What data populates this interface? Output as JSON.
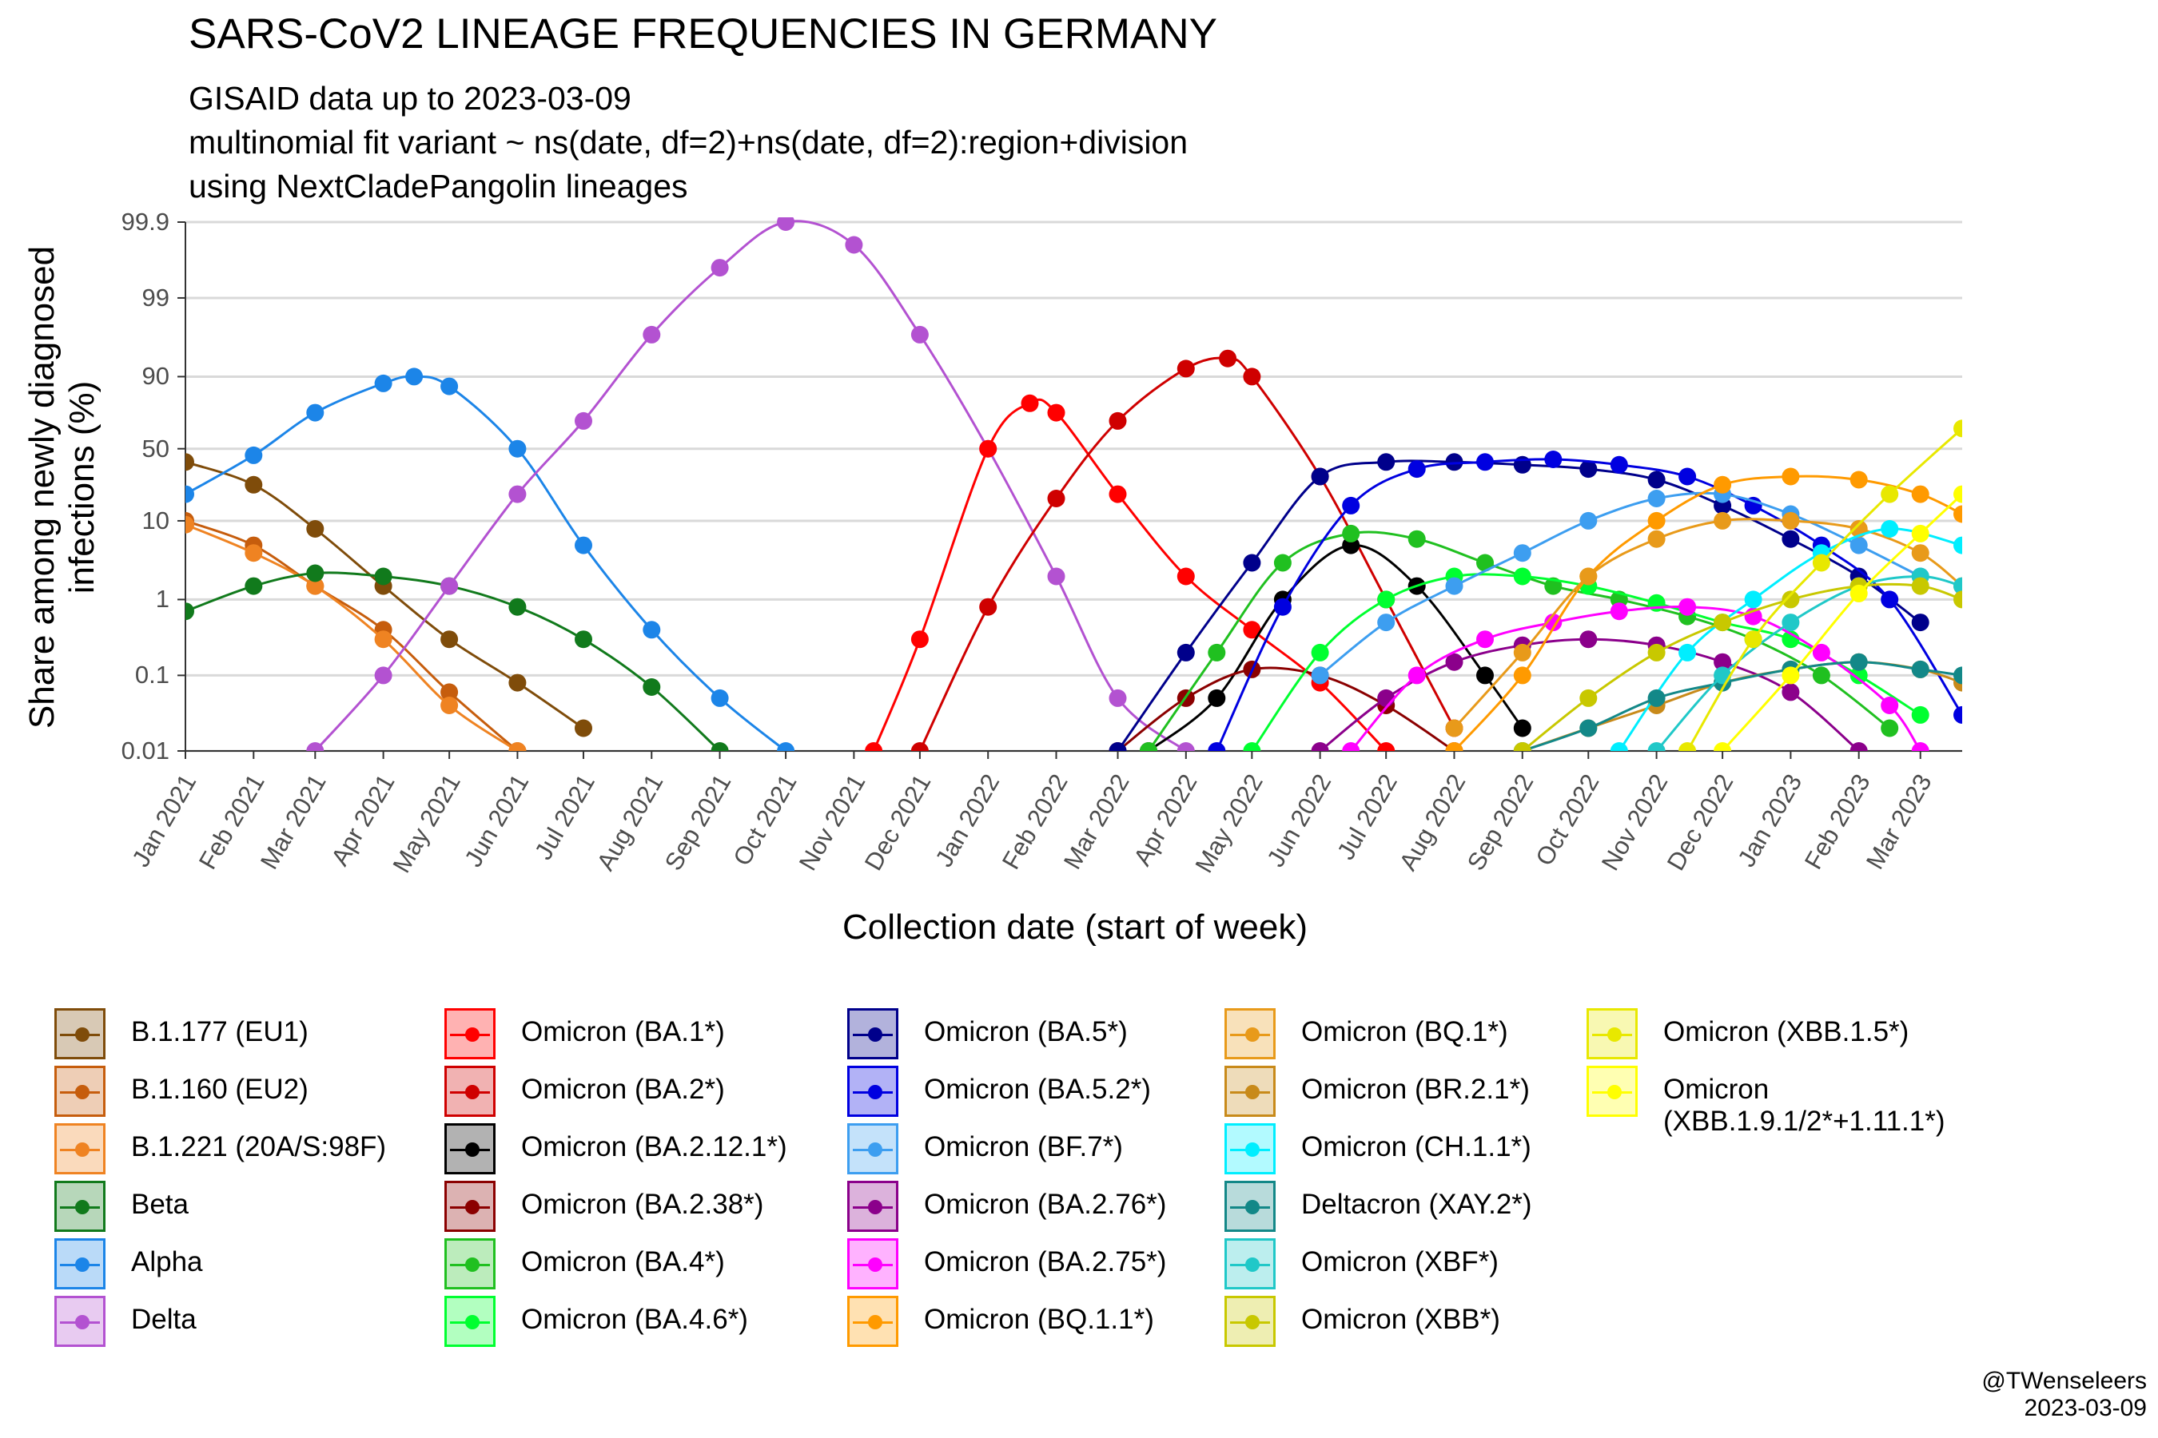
{
  "title": "SARS-CoV2 LINEAGE FREQUENCIES IN GERMANY",
  "subtitle": "GISAID data up to 2023-03-09\nmultinomial fit variant ~ ns(date, df=2)+ns(date, df=2):region+division\nusing NextCladePangolin lineages",
  "caption": "@TWenseleers\n2023-03-09",
  "chart_data": {
    "type": "line",
    "xlabel": "Collection date (start of week)",
    "ylabel": "Share among newly diagnosed\ninfections (%)",
    "y_scale": "logit",
    "y_ticks": [
      {
        "value": 0.01,
        "label": "0.01"
      },
      {
        "value": 0.1,
        "label": "0.1"
      },
      {
        "value": 1,
        "label": "1"
      },
      {
        "value": 10,
        "label": "10"
      },
      {
        "value": 50,
        "label": "50"
      },
      {
        "value": 90,
        "label": "90"
      },
      {
        "value": 99,
        "label": "99"
      },
      {
        "value": 99.9,
        "label": "99.9"
      }
    ],
    "x_ticks": [
      "Jan 2021",
      "Feb 2021",
      "Mar 2021",
      "Apr 2021",
      "May 2021",
      "Jun 2021",
      "Jul 2021",
      "Aug 2021",
      "Sep 2021",
      "Oct 2021",
      "Nov 2021",
      "Dec 2021",
      "Jan 2022",
      "Feb 2022",
      "Mar 2022",
      "Apr 2022",
      "May 2022",
      "Jun 2022",
      "Jul 2022",
      "Aug 2022",
      "Sep 2022",
      "Oct 2022",
      "Nov 2022",
      "Dec 2022",
      "Jan 2023",
      "Feb 2023",
      "Mar 2023"
    ],
    "xlim": [
      "2021-01-01",
      "2023-03-20"
    ],
    "ylim": [
      0.01,
      99.9
    ],
    "grid": true,
    "legend_position": "bottom",
    "series": [
      {
        "name": "B.1.177 (EU1)",
        "color": "#7f4c0a",
        "x": [
          "2021-01-01",
          "2021-02-01",
          "2021-03-01",
          "2021-04-01",
          "2021-05-01",
          "2021-06-01",
          "2021-07-01"
        ],
        "y": [
          40,
          25,
          8,
          1.5,
          0.3,
          0.08,
          0.02
        ]
      },
      {
        "name": "B.1.160 (EU2)",
        "color": "#c65d0d",
        "x": [
          "2021-01-01",
          "2021-02-01",
          "2021-03-01",
          "2021-04-01",
          "2021-05-01",
          "2021-06-01"
        ],
        "y": [
          10,
          5,
          1.5,
          0.4,
          0.06,
          0.01
        ]
      },
      {
        "name": "B.1.221 (20A/S:98F)",
        "color": "#ef8322",
        "x": [
          "2021-01-01",
          "2021-02-01",
          "2021-03-01",
          "2021-04-01",
          "2021-05-01",
          "2021-06-01"
        ],
        "y": [
          9,
          4,
          1.5,
          0.3,
          0.04,
          0.01
        ]
      },
      {
        "name": "Beta",
        "color": "#117a1c",
        "x": [
          "2021-01-01",
          "2021-02-01",
          "2021-03-01",
          "2021-04-01",
          "2021-05-01",
          "2021-06-01",
          "2021-07-01",
          "2021-08-01",
          "2021-09-01"
        ],
        "y": [
          0.7,
          1.5,
          2.2,
          2,
          1.5,
          0.8,
          0.3,
          0.07,
          0.01
        ]
      },
      {
        "name": "Alpha",
        "color": "#1c85e8",
        "x": [
          "2021-01-01",
          "2021-02-01",
          "2021-03-01",
          "2021-04-01",
          "2021-04-15",
          "2021-05-01",
          "2021-06-01",
          "2021-07-01",
          "2021-08-01",
          "2021-09-01",
          "2021-10-01"
        ],
        "y": [
          20,
          45,
          75,
          88,
          90,
          87,
          50,
          5,
          0.4,
          0.05,
          0.01
        ]
      },
      {
        "name": "Delta",
        "color": "#b352d1",
        "x": [
          "2021-03-01",
          "2021-04-01",
          "2021-05-01",
          "2021-06-01",
          "2021-07-01",
          "2021-08-01",
          "2021-09-01",
          "2021-10-01",
          "2021-11-01",
          "2021-12-01",
          "2022-01-01",
          "2022-02-01",
          "2022-03-01",
          "2022-04-01"
        ],
        "y": [
          0.01,
          0.1,
          1.5,
          20,
          70,
          97,
          99.6,
          99.9,
          99.8,
          97,
          50,
          2,
          0.05,
          0.01
        ]
      },
      {
        "name": "Omicron (BA.1*)",
        "color": "#ff0000",
        "x": [
          "2021-11-10",
          "2021-12-01",
          "2022-01-01",
          "2022-01-20",
          "2022-02-01",
          "2022-03-01",
          "2022-04-01",
          "2022-05-01",
          "2022-06-01",
          "2022-07-01"
        ],
        "y": [
          0.01,
          0.3,
          50,
          80,
          75,
          20,
          2,
          0.4,
          0.08,
          0.01
        ]
      },
      {
        "name": "Omicron (BA.2*)",
        "color": "#cf0000",
        "x": [
          "2021-12-01",
          "2022-01-01",
          "2022-02-01",
          "2022-03-01",
          "2022-04-01",
          "2022-04-20",
          "2022-05-01",
          "2022-06-01",
          "2022-07-01",
          "2022-08-01"
        ],
        "y": [
          0.01,
          0.8,
          18,
          70,
          92,
          94,
          90,
          30,
          1,
          0.02
        ]
      },
      {
        "name": "Omicron (BA.2.12.1*)",
        "color": "#000000",
        "x": [
          "2022-03-15",
          "2022-04-15",
          "2022-05-15",
          "2022-06-15",
          "2022-07-15",
          "2022-08-15",
          "2022-09-01"
        ],
        "y": [
          0.01,
          0.05,
          1,
          5,
          1.5,
          0.1,
          0.02
        ]
      },
      {
        "name": "Omicron (BA.2.38*)",
        "color": "#8b0000",
        "x": [
          "2022-03-01",
          "2022-04-01",
          "2022-05-01",
          "2022-06-01",
          "2022-07-01",
          "2022-08-01"
        ],
        "y": [
          0.01,
          0.05,
          0.12,
          0.1,
          0.04,
          0.01
        ]
      },
      {
        "name": "Omicron (BA.4*)",
        "color": "#20c020",
        "x": [
          "2022-03-15",
          "2022-04-15",
          "2022-05-15",
          "2022-06-15",
          "2022-07-15",
          "2022-08-15",
          "2022-09-15",
          "2022-10-15",
          "2022-11-15",
          "2022-12-15",
          "2023-01-15",
          "2023-02-15"
        ],
        "y": [
          0.01,
          0.2,
          3,
          7,
          6,
          3,
          1.5,
          1,
          0.6,
          0.3,
          0.1,
          0.02
        ]
      },
      {
        "name": "Omicron (BA.4.6*)",
        "color": "#00ff30",
        "x": [
          "2022-05-01",
          "2022-06-01",
          "2022-07-01",
          "2022-08-01",
          "2022-09-01",
          "2022-10-01",
          "2022-11-01",
          "2022-12-01",
          "2023-01-01",
          "2023-02-01",
          "2023-03-01"
        ],
        "y": [
          0.01,
          0.2,
          1,
          2,
          2,
          1.5,
          0.9,
          0.5,
          0.3,
          0.1,
          0.03
        ]
      },
      {
        "name": "Omicron (BA.5*)",
        "color": "#00008b",
        "x": [
          "2022-03-01",
          "2022-04-01",
          "2022-05-01",
          "2022-06-01",
          "2022-07-01",
          "2022-08-01",
          "2022-09-01",
          "2022-10-01",
          "2022-11-01",
          "2022-12-01",
          "2023-01-01",
          "2023-02-01",
          "2023-03-01"
        ],
        "y": [
          0.01,
          0.2,
          3,
          30,
          40,
          40,
          38,
          35,
          28,
          15,
          6,
          2,
          0.5
        ]
      },
      {
        "name": "Omicron (BA.5.2*)",
        "color": "#0000e0",
        "x": [
          "2022-04-15",
          "2022-05-15",
          "2022-06-15",
          "2022-07-15",
          "2022-08-15",
          "2022-09-15",
          "2022-10-15",
          "2022-11-15",
          "2022-12-15",
          "2023-01-15",
          "2023-02-15",
          "2023-03-20"
        ],
        "y": [
          0.01,
          0.8,
          15,
          35,
          40,
          42,
          38,
          30,
          15,
          5,
          1,
          0.03
        ]
      },
      {
        "name": "Omicron (BF.7*)",
        "color": "#3d9ef0",
        "x": [
          "2022-06-01",
          "2022-07-01",
          "2022-08-01",
          "2022-09-01",
          "2022-10-01",
          "2022-11-01",
          "2022-12-01",
          "2023-01-01",
          "2023-02-01",
          "2023-03-01"
        ],
        "y": [
          0.1,
          0.5,
          1.5,
          4,
          10,
          18,
          20,
          12,
          5,
          2
        ]
      },
      {
        "name": "Omicron (BA.2.76*)",
        "color": "#8b008b",
        "x": [
          "2022-06-01",
          "2022-07-01",
          "2022-08-01",
          "2022-09-01",
          "2022-10-01",
          "2022-11-01",
          "2022-12-01",
          "2023-01-01",
          "2023-02-01"
        ],
        "y": [
          0.01,
          0.05,
          0.15,
          0.25,
          0.3,
          0.25,
          0.15,
          0.06,
          0.01
        ]
      },
      {
        "name": "Omicron (BA.2.75*)",
        "color": "#ff00ff",
        "x": [
          "2022-06-15",
          "2022-07-15",
          "2022-08-15",
          "2022-09-15",
          "2022-10-15",
          "2022-11-15",
          "2022-12-15",
          "2023-01-15",
          "2023-02-15",
          "2023-03-01"
        ],
        "y": [
          0.01,
          0.1,
          0.3,
          0.5,
          0.7,
          0.8,
          0.6,
          0.2,
          0.04,
          0.01
        ]
      },
      {
        "name": "Omicron (BQ.1.1*)",
        "color": "#ff9a00",
        "x": [
          "2022-08-01",
          "2022-09-01",
          "2022-10-01",
          "2022-11-01",
          "2022-12-01",
          "2023-01-01",
          "2023-02-01",
          "2023-03-01",
          "2023-03-20"
        ],
        "y": [
          0.01,
          0.1,
          2,
          10,
          25,
          30,
          28,
          20,
          12
        ]
      },
      {
        "name": "Omicron (BQ.1*)",
        "color": "#e89a1a",
        "x": [
          "2022-08-01",
          "2022-09-01",
          "2022-10-01",
          "2022-11-01",
          "2022-12-01",
          "2023-01-01",
          "2023-02-01",
          "2023-03-01",
          "2023-03-20"
        ],
        "y": [
          0.02,
          0.2,
          2,
          6,
          10,
          10,
          8,
          4,
          1.5
        ]
      },
      {
        "name": "Omicron (BR.2.1*)",
        "color": "#c88a1a",
        "x": [
          "2022-09-01",
          "2022-10-01",
          "2022-11-01",
          "2022-12-01",
          "2023-01-01",
          "2023-02-01",
          "2023-03-01",
          "2023-03-20"
        ],
        "y": [
          0.01,
          0.02,
          0.04,
          0.08,
          0.12,
          0.15,
          0.12,
          0.08
        ]
      },
      {
        "name": "Omicron (CH.1.1*)",
        "color": "#00eeff",
        "x": [
          "2022-10-15",
          "2022-11-15",
          "2022-12-15",
          "2023-01-15",
          "2023-02-15",
          "2023-03-20"
        ],
        "y": [
          0.01,
          0.2,
          1,
          4,
          8,
          5
        ]
      },
      {
        "name": "Deltacron (XAY.2*)",
        "color": "#138888",
        "x": [
          "2022-09-01",
          "2022-10-01",
          "2022-11-01",
          "2022-12-01",
          "2023-01-01",
          "2023-02-01",
          "2023-03-01",
          "2023-03-20"
        ],
        "y": [
          0.01,
          0.02,
          0.05,
          0.08,
          0.12,
          0.15,
          0.12,
          0.1
        ]
      },
      {
        "name": "Omicron (XBF*)",
        "color": "#20c8c8",
        "x": [
          "2022-11-01",
          "2022-12-01",
          "2023-01-01",
          "2023-02-01",
          "2023-03-01",
          "2023-03-20"
        ],
        "y": [
          0.01,
          0.1,
          0.5,
          1.5,
          2,
          1.5
        ]
      },
      {
        "name": "Omicron (XBB*)",
        "color": "#c8c800",
        "x": [
          "2022-09-01",
          "2022-10-01",
          "2022-11-01",
          "2022-12-01",
          "2023-01-01",
          "2023-02-01",
          "2023-03-01",
          "2023-03-20"
        ],
        "y": [
          0.01,
          0.05,
          0.2,
          0.5,
          1,
          1.5,
          1.5,
          1
        ]
      },
      {
        "name": "Omicron (XBB.1.5*)",
        "color": "#e8e800",
        "x": [
          "2022-11-15",
          "2022-12-15",
          "2023-01-15",
          "2023-02-15",
          "2023-03-20"
        ],
        "y": [
          0.01,
          0.3,
          3,
          20,
          65
        ]
      },
      {
        "name": "Omicron (XBB.1.9.1/2*+1.11.1*)",
        "color": "#ffff00",
        "x": [
          "2022-12-01",
          "2023-01-01",
          "2023-02-01",
          "2023-03-01",
          "2023-03-20"
        ],
        "y": [
          0.01,
          0.1,
          1.2,
          7,
          20
        ]
      }
    ]
  }
}
